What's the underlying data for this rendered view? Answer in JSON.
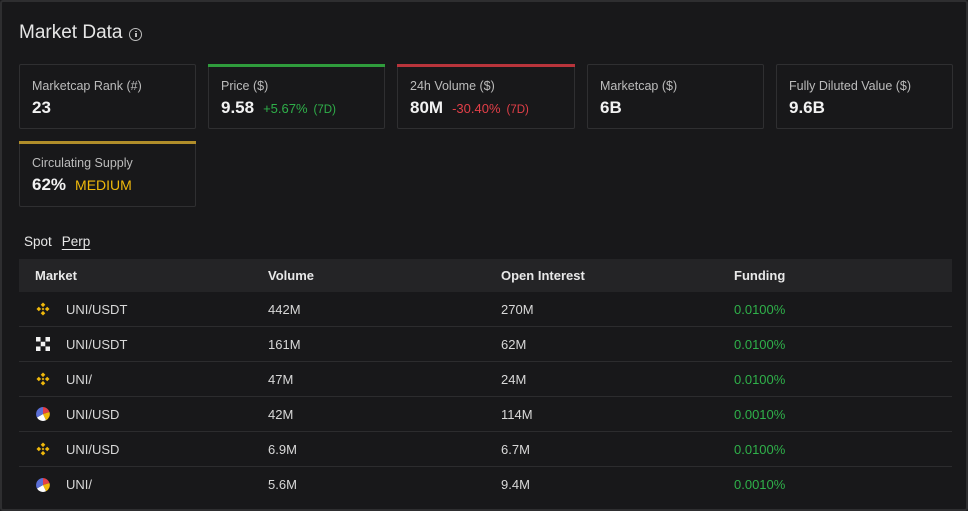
{
  "header": {
    "title": "Market Data",
    "info_icon": "info-circle-icon"
  },
  "colors": {
    "up": "#2fb04a",
    "down": "#e23f48",
    "medium": "#f0b90b",
    "bar_green": "#2f9c3c",
    "bar_red": "#b8343b",
    "bar_gold": "#b08d2a"
  },
  "stats": {
    "rank": {
      "label": "Marketcap Rank (#)",
      "value": "23"
    },
    "price": {
      "label": "Price ($)",
      "value": "9.58",
      "change": "+5.67%",
      "period": "(7D)"
    },
    "volume": {
      "label": "24h Volume ($)",
      "value": "80M",
      "change": "-30.40%",
      "period": "(7D)"
    },
    "marketcap": {
      "label": "Marketcap ($)",
      "value": "6B"
    },
    "fdv": {
      "label": "Fully Diluted Value ($)",
      "value": "9.6B"
    },
    "supply": {
      "label": "Circulating Supply",
      "value": "62%",
      "tag": "MEDIUM"
    }
  },
  "tabs": {
    "spot": "Spot",
    "perp": "Perp"
  },
  "table": {
    "headers": {
      "market": "Market",
      "volume": "Volume",
      "open_interest": "Open Interest",
      "funding": "Funding"
    },
    "rows": [
      {
        "exchange_icon": "binance-icon",
        "market": "UNI/USDT",
        "volume": "442M",
        "open_interest": "270M",
        "funding": "0.0100%"
      },
      {
        "exchange_icon": "okx-icon",
        "market": "UNI/USDT",
        "volume": "161M",
        "open_interest": "62M",
        "funding": "0.0100%"
      },
      {
        "exchange_icon": "binance-icon",
        "market": "UNI/",
        "volume": "47M",
        "open_interest": "24M",
        "funding": "0.0100%"
      },
      {
        "exchange_icon": "pie-exchange-icon",
        "market": "UNI/USD",
        "volume": "42M",
        "open_interest": "114M",
        "funding": "0.0010%"
      },
      {
        "exchange_icon": "binance-icon",
        "market": "UNI/USD",
        "volume": "6.9M",
        "open_interest": "6.7M",
        "funding": "0.0100%"
      },
      {
        "exchange_icon": "pie-exchange-icon",
        "market": "UNI/",
        "volume": "5.6M",
        "open_interest": "9.4M",
        "funding": "0.0010%"
      }
    ]
  }
}
